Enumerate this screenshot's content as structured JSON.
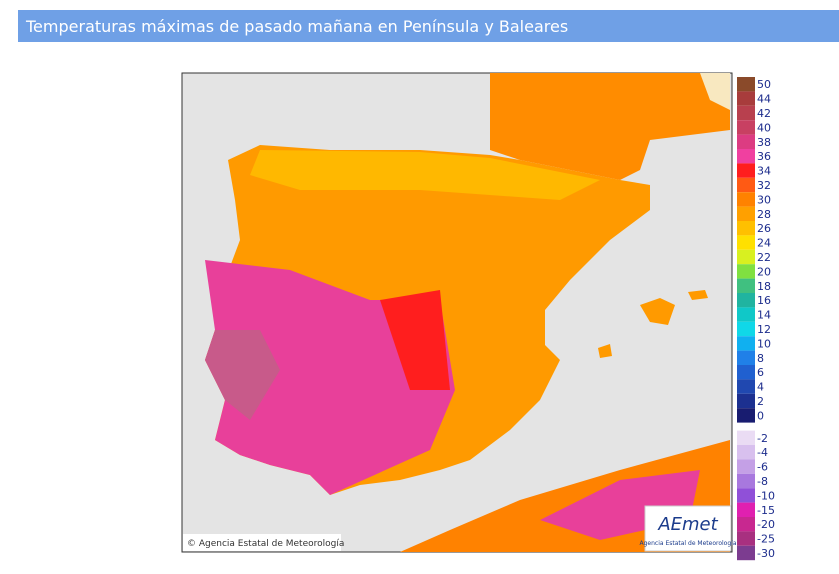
{
  "header": {
    "title": "Temperaturas máximas de pasado mañana en Península y Baleares"
  },
  "map": {
    "copyright": "© Agencia Estatal de Meteorología",
    "logo": "AEmet",
    "logo_caption": "Agencia Estatal de Meteorología"
  },
  "legend": [
    {
      "label": "50",
      "color": "#8a4a2a"
    },
    {
      "label": "44",
      "color": "#a83c3c"
    },
    {
      "label": "42",
      "color": "#b8404e"
    },
    {
      "label": "40",
      "color": "#c84062"
    },
    {
      "label": "38",
      "color": "#dc3c82"
    },
    {
      "label": "36",
      "color": "#f040a0"
    },
    {
      "label": "34",
      "color": "#ff1e1e"
    },
    {
      "label": "32",
      "color": "#ff5a14"
    },
    {
      "label": "30",
      "color": "#ff8200"
    },
    {
      "label": "28",
      "color": "#ffa000"
    },
    {
      "label": "26",
      "color": "#ffc000"
    },
    {
      "label": "24",
      "color": "#ffe000"
    },
    {
      "label": "22",
      "color": "#d8f020"
    },
    {
      "label": "20",
      "color": "#80e040"
    },
    {
      "label": "18",
      "color": "#40c080"
    },
    {
      "label": "16",
      "color": "#20b4a0"
    },
    {
      "label": "14",
      "color": "#10c8c8"
    },
    {
      "label": "12",
      "color": "#10d8e8"
    },
    {
      "label": "10",
      "color": "#10b0f0"
    },
    {
      "label": "8",
      "color": "#2080e8"
    },
    {
      "label": "6",
      "color": "#2060d0"
    },
    {
      "label": "4",
      "color": "#2048b0"
    },
    {
      "label": "2",
      "color": "#1c3090"
    },
    {
      "label": "0",
      "color": "#181c70"
    },
    {
      "label": "-2",
      "color": "#eadcf4"
    },
    {
      "label": "-4",
      "color": "#d8c0ee"
    },
    {
      "label": "-6",
      "color": "#c4a0e6"
    },
    {
      "label": "-8",
      "color": "#a878de"
    },
    {
      "label": "-10",
      "color": "#9050d8"
    },
    {
      "label": "-15",
      "color": "#e020b0"
    },
    {
      "label": "-20",
      "color": "#c82890"
    },
    {
      "label": "-25",
      "color": "#a83080"
    },
    {
      "label": "-30",
      "color": "#7c3c90"
    }
  ]
}
